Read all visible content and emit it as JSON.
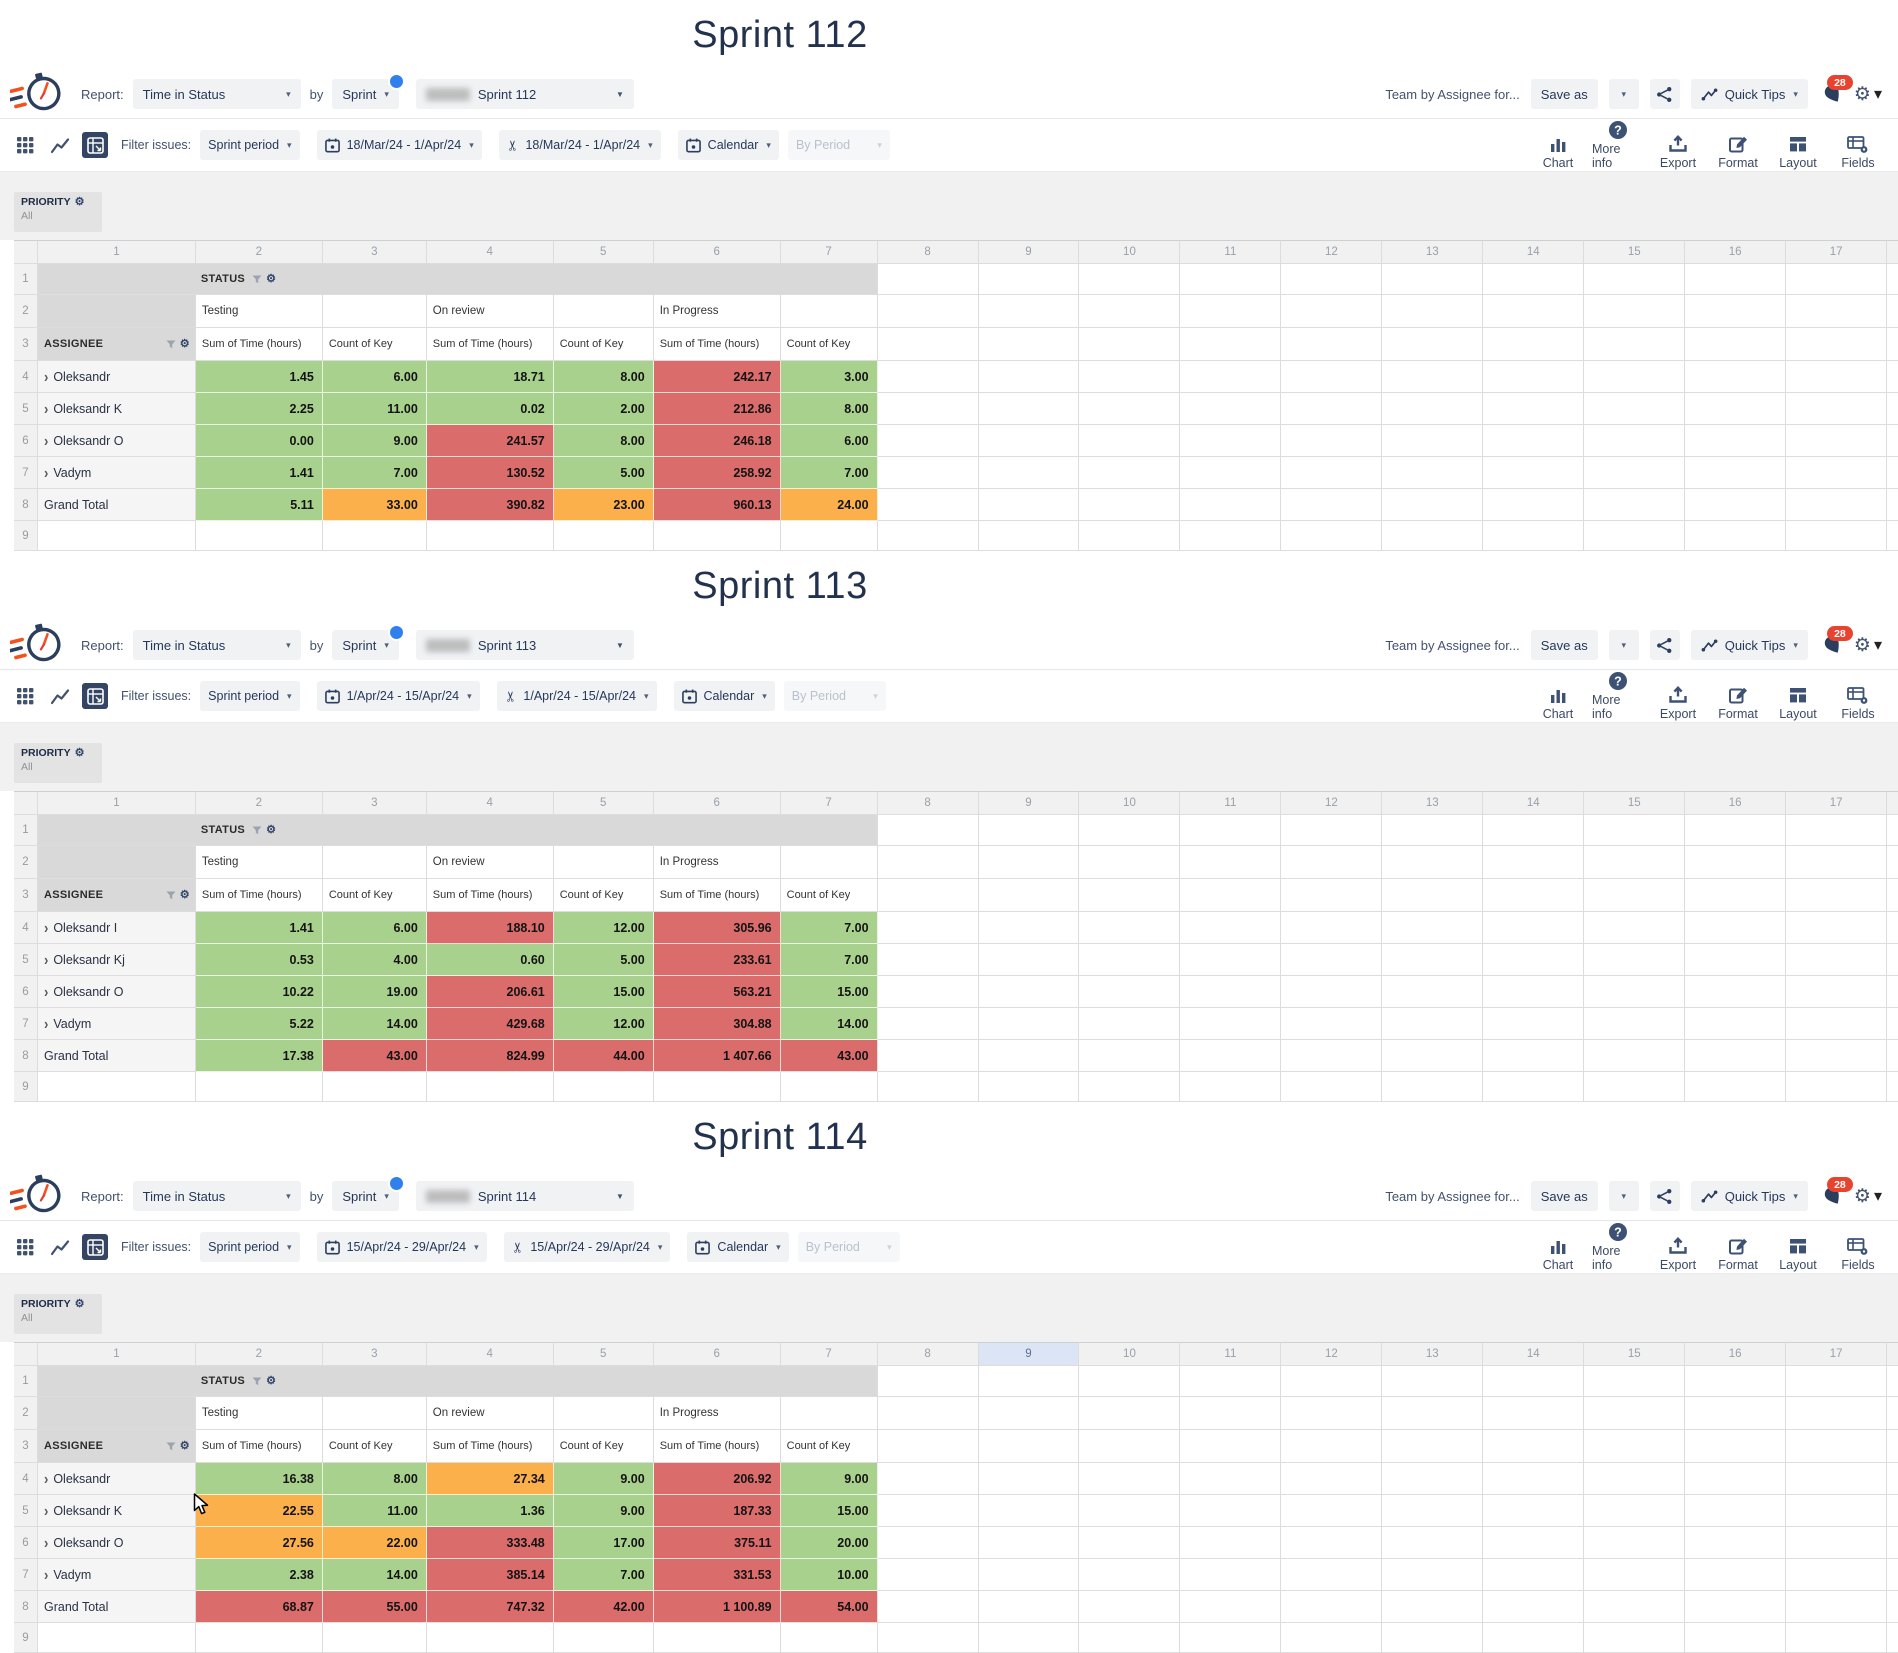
{
  "colors": {
    "green": "#a9d18e",
    "red": "#db6c6c",
    "orange": "#fbb04c",
    "header_gray": "#d9d9d9",
    "gutter_gray": "#f1f1f2",
    "highlight_col": "#dbe5f5",
    "accent_navy": "#344563",
    "badge_red": "#e8432e",
    "dot_blue": "#2f80ed"
  },
  "glyphs": {
    "chevron_down": "▾",
    "dropdown_arrow": "▼",
    "gear": "⚙",
    "scissors": "✂",
    "expand": "›",
    "question": "?"
  },
  "header": {
    "report_label": "Report:",
    "report_value": "Time in Status",
    "by_label": "by",
    "group_value": "Sprint",
    "team_text": "Team by Assignee for...",
    "save_as_label": "Save as",
    "quick_tips_label": "Quick Tips",
    "badge_count": "28"
  },
  "toolbar": {
    "filter_label": "Filter issues:",
    "period_value": "Sprint period",
    "calendar_value": "Calendar",
    "by_period_value": "By Period",
    "tools": [
      "Chart",
      "More info",
      "Export",
      "Format",
      "Layout",
      "Fields"
    ]
  },
  "pivot": {
    "priority_label": "PRIORITY",
    "priority_value": "All",
    "status_label": "STATUS",
    "assignee_label": "ASSIGNEE",
    "status_groups": [
      "Testing",
      "On review",
      "In Progress"
    ],
    "measure_labels": [
      "Sum of Time (hours)",
      "Count of Key"
    ],
    "grand_total_label": "Grand Total"
  },
  "grid": {
    "columns": [
      "1",
      "2",
      "3",
      "4",
      "5",
      "6",
      "7",
      "8",
      "9",
      "10",
      "11",
      "12",
      "13",
      "14",
      "15",
      "16",
      "17"
    ],
    "rows": [
      "1",
      "2",
      "3",
      "4",
      "5",
      "6",
      "7",
      "8",
      "9"
    ]
  },
  "sections": [
    {
      "title": "Sprint 112",
      "sprint_value": "Sprint 112",
      "date_range": "18/Mar/24 - 1/Apr/24",
      "highlight_column": 0,
      "show_cursor": false,
      "rows": [
        {
          "label": "Oleksandr",
          "expandable": true,
          "values": [
            "1.45",
            "6.00",
            "18.71",
            "8.00",
            "242.17",
            "3.00"
          ],
          "colors": [
            "g",
            "g",
            "g",
            "g",
            "r",
            "g"
          ]
        },
        {
          "label": "Oleksandr K",
          "expandable": true,
          "values": [
            "2.25",
            "11.00",
            "0.02",
            "2.00",
            "212.86",
            "8.00"
          ],
          "colors": [
            "g",
            "g",
            "g",
            "g",
            "r",
            "g"
          ]
        },
        {
          "label": "Oleksandr O",
          "expandable": true,
          "values": [
            "0.00",
            "9.00",
            "241.57",
            "8.00",
            "246.18",
            "6.00"
          ],
          "colors": [
            "g",
            "g",
            "r",
            "g",
            "r",
            "g"
          ]
        },
        {
          "label": "Vadym",
          "expandable": true,
          "values": [
            "1.41",
            "7.00",
            "130.52",
            "5.00",
            "258.92",
            "7.00"
          ],
          "colors": [
            "g",
            "g",
            "r",
            "g",
            "r",
            "g"
          ]
        },
        {
          "label": "Grand Total",
          "expandable": false,
          "values": [
            "5.11",
            "33.00",
            "390.82",
            "23.00",
            "960.13",
            "24.00"
          ],
          "colors": [
            "g",
            "o",
            "r",
            "o",
            "r",
            "o"
          ]
        }
      ]
    },
    {
      "title": "Sprint 113",
      "sprint_value": "Sprint 113",
      "date_range": "1/Apr/24 - 15/Apr/24",
      "highlight_column": 0,
      "show_cursor": false,
      "rows": [
        {
          "label": "Oleksandr I",
          "expandable": true,
          "values": [
            "1.41",
            "6.00",
            "188.10",
            "12.00",
            "305.96",
            "7.00"
          ],
          "colors": [
            "g",
            "g",
            "r",
            "g",
            "r",
            "g"
          ]
        },
        {
          "label": "Oleksandr Kj",
          "expandable": true,
          "values": [
            "0.53",
            "4.00",
            "0.60",
            "5.00",
            "233.61",
            "7.00"
          ],
          "colors": [
            "g",
            "g",
            "g",
            "g",
            "r",
            "g"
          ]
        },
        {
          "label": "Oleksandr O",
          "expandable": true,
          "values": [
            "10.22",
            "19.00",
            "206.61",
            "15.00",
            "563.21",
            "15.00"
          ],
          "colors": [
            "g",
            "g",
            "r",
            "g",
            "r",
            "g"
          ]
        },
        {
          "label": "Vadym",
          "expandable": true,
          "values": [
            "5.22",
            "14.00",
            "429.68",
            "12.00",
            "304.88",
            "14.00"
          ],
          "colors": [
            "g",
            "g",
            "r",
            "g",
            "r",
            "g"
          ]
        },
        {
          "label": "Grand Total",
          "expandable": false,
          "values": [
            "17.38",
            "43.00",
            "824.99",
            "44.00",
            "1 407.66",
            "43.00"
          ],
          "colors": [
            "g",
            "r",
            "r",
            "r",
            "r",
            "r"
          ]
        }
      ]
    },
    {
      "title": "Sprint 114",
      "sprint_value": "Sprint 114",
      "date_range": "15/Apr/24 - 29/Apr/24",
      "highlight_column": 9,
      "show_cursor": true,
      "rows": [
        {
          "label": "Oleksandr",
          "expandable": true,
          "values": [
            "16.38",
            "8.00",
            "27.34",
            "9.00",
            "206.92",
            "9.00"
          ],
          "colors": [
            "g",
            "g",
            "o",
            "g",
            "r",
            "g"
          ]
        },
        {
          "label": "Oleksandr K",
          "expandable": true,
          "values": [
            "22.55",
            "11.00",
            "1.36",
            "9.00",
            "187.33",
            "15.00"
          ],
          "colors": [
            "o",
            "g",
            "g",
            "g",
            "r",
            "g"
          ]
        },
        {
          "label": "Oleksandr O",
          "expandable": true,
          "values": [
            "27.56",
            "22.00",
            "333.48",
            "17.00",
            "375.11",
            "20.00"
          ],
          "colors": [
            "o",
            "o",
            "r",
            "g",
            "r",
            "g"
          ]
        },
        {
          "label": "Vadym",
          "expandable": true,
          "values": [
            "2.38",
            "14.00",
            "385.14",
            "7.00",
            "331.53",
            "10.00"
          ],
          "colors": [
            "g",
            "g",
            "r",
            "g",
            "r",
            "g"
          ]
        },
        {
          "label": "Grand Total",
          "expandable": false,
          "values": [
            "68.87",
            "55.00",
            "747.32",
            "42.00",
            "1 100.89",
            "54.00"
          ],
          "colors": [
            "r",
            "r",
            "r",
            "r",
            "r",
            "r"
          ]
        }
      ]
    }
  ]
}
